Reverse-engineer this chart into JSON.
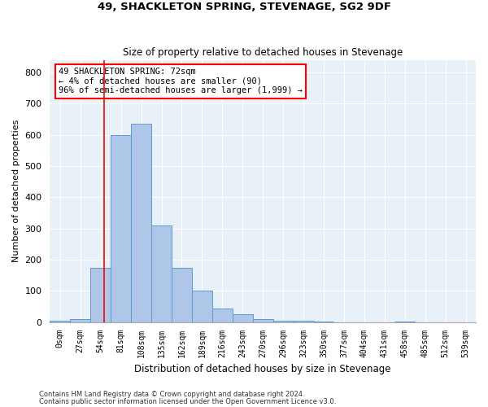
{
  "title": "49, SHACKLETON SPRING, STEVENAGE, SG2 9DF",
  "subtitle": "Size of property relative to detached houses in Stevenage",
  "xlabel": "Distribution of detached houses by size in Stevenage",
  "ylabel": "Number of detached properties",
  "bin_labels": [
    "0sqm",
    "27sqm",
    "54sqm",
    "81sqm",
    "108sqm",
    "135sqm",
    "162sqm",
    "189sqm",
    "216sqm",
    "243sqm",
    "270sqm",
    "296sqm",
    "323sqm",
    "350sqm",
    "377sqm",
    "404sqm",
    "431sqm",
    "458sqm",
    "485sqm",
    "512sqm",
    "539sqm"
  ],
  "bar_values": [
    5,
    10,
    175,
    600,
    635,
    310,
    175,
    100,
    45,
    25,
    10,
    5,
    5,
    3,
    0,
    0,
    0,
    3,
    0,
    0,
    0
  ],
  "bar_color": "#aec6e8",
  "bar_edge_color": "#5b9bd5",
  "background_color": "#e8f0f8",
  "grid_color": "#ffffff",
  "red_line_x": 2,
  "annotation_text": "49 SHACKLETON SPRING: 72sqm\n← 4% of detached houses are smaller (90)\n96% of semi-detached houses are larger (1,999) →",
  "annotation_box_color": "white",
  "annotation_box_edge": "red",
  "footer1": "Contains HM Land Registry data © Crown copyright and database right 2024.",
  "footer2": "Contains public sector information licensed under the Open Government Licence v3.0.",
  "ylim": [
    0,
    840
  ],
  "yticks": [
    0,
    100,
    200,
    300,
    400,
    500,
    600,
    700,
    800
  ]
}
